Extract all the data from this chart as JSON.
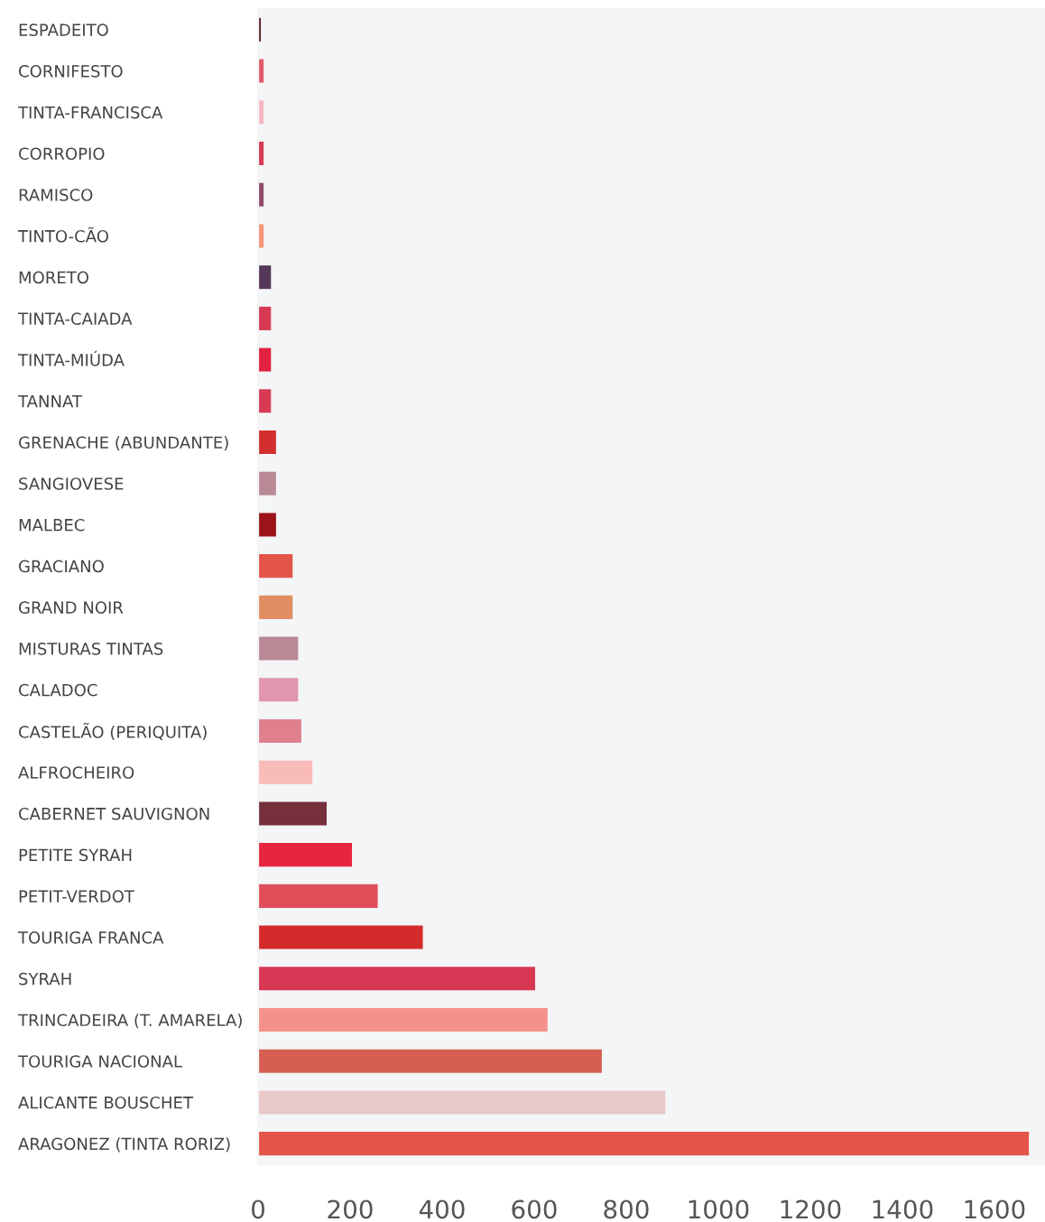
{
  "chart_data": {
    "type": "bar",
    "orientation": "horizontal",
    "categories": [
      "ESPADEITO",
      "CORNIFESTO",
      "TINTA-FRANCISCA",
      "CORROPIO",
      "RAMISCO",
      "TINTO-CÃO",
      "MORETO",
      "TINTA-CAIADA",
      "TINTA-MIÚDA",
      "TANNAT",
      "GRENACHE (ABUNDANTE)",
      "SANGIOVESE",
      "MALBEC",
      "GRACIANO",
      "GRAND NOIR",
      "MISTURAS TINTAS",
      "CALADOC",
      "CASTELÃO (PERIQUITA)",
      "ALFROCHEIRO",
      "CABERNET SAUVIGNON",
      "PETITE SYRAH",
      "PETIT-VERDOT",
      "TOURIGA FRANCA",
      "SYRAH",
      "TRINCADEIRA (T. AMARELA)",
      "TOURIGA NACIONAL",
      "ALICANTE BOUSCHET",
      "ARAGONEZ (TINTA RORIZ)"
    ],
    "values": [
      6,
      12,
      12,
      12,
      12,
      12,
      28,
      28,
      28,
      28,
      39,
      39,
      39,
      75,
      75,
      87,
      87,
      94,
      118,
      149,
      204,
      260,
      358,
      602,
      629,
      747,
      885,
      1675
    ],
    "colors": [
      "#5e2129",
      "#e55a6a",
      "#f6b8c0",
      "#d73a55",
      "#8e4a68",
      "#f79478",
      "#56385a",
      "#d73a55",
      "#e2233f",
      "#d73a55",
      "#d42f2f",
      "#b98a96",
      "#9b1518",
      "#e35548",
      "#e38e62",
      "#b98a96",
      "#e096b0",
      "#e0808f",
      "#f9bbb8",
      "#76303c",
      "#e8243f",
      "#e04e5a",
      "#d32b2c",
      "#d73753",
      "#f4918a",
      "#d65f52",
      "#e9c8c8",
      "#e35547"
    ],
    "xlim": [
      0,
      1710
    ],
    "xticks": [
      0,
      200,
      400,
      600,
      800,
      1000,
      1200,
      1400,
      1600
    ],
    "grid": false
  }
}
